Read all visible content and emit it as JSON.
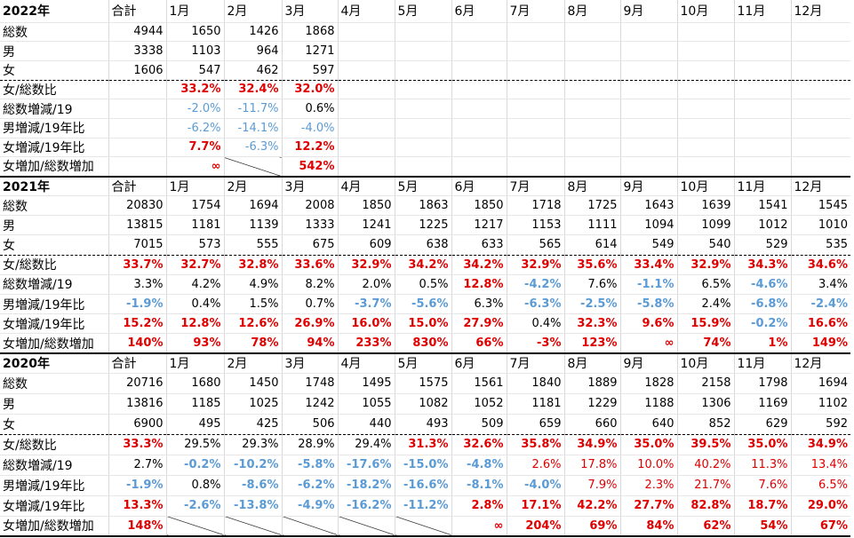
{
  "sections": [
    {
      "header": [
        "2022年",
        "合計",
        "1月",
        "2月",
        "3月",
        "4月",
        "5月",
        "6月",
        "7月",
        "8月",
        "9月",
        "10月",
        "11月",
        "12月"
      ],
      "rows": [
        {
          "cells": [
            "総数",
            4944,
            1650,
            1426,
            1868,
            null,
            null,
            null,
            null,
            null,
            null,
            null,
            null,
            null
          ],
          "styles": "kkkkkkkkkkkkk"
        },
        {
          "cells": [
            "男",
            3338,
            1103,
            964,
            1271,
            null,
            null,
            null,
            null,
            null,
            null,
            null,
            null,
            null
          ],
          "styles": "kkkkkkkkkkkkk"
        },
        {
          "cells": [
            "女",
            1606,
            547,
            462,
            597,
            null,
            null,
            null,
            null,
            null,
            null,
            null,
            null,
            null
          ],
          "styles": "kkkkkkkkkkkkk"
        },
        {
          "cells": [
            "女/総数比",
            null,
            "33.2%",
            "32.4%",
            "32.0%",
            null,
            null,
            null,
            null,
            null,
            null,
            null,
            null,
            null
          ],
          "styles": "krrrkkkkkkkkk"
        },
        {
          "cells": [
            "総数増減/19",
            null,
            "-2.0%",
            "-11.7%",
            "0.6%",
            null,
            null,
            null,
            null,
            null,
            null,
            null,
            null,
            null
          ],
          "styles": "kllkkkkkkkkkk"
        },
        {
          "cells": [
            "男増減/19年比",
            null,
            "-6.2%",
            "-14.1%",
            "-4.0%",
            null,
            null,
            null,
            null,
            null,
            null,
            null,
            null,
            null
          ],
          "styles": "klllkkkkkkkkk"
        },
        {
          "cells": [
            "女増減/19年比",
            null,
            "7.7%",
            "-6.3%",
            "12.2%",
            null,
            null,
            null,
            null,
            null,
            null,
            null,
            null,
            null
          ],
          "styles": "krlrkkkkkkkkk"
        },
        {
          "cells": [
            "女増加/総数増加",
            null,
            "∞",
            null,
            "542%",
            null,
            null,
            null,
            null,
            null,
            null,
            null,
            null,
            null
          ],
          "styles": "krxrkkkkkkkkk"
        }
      ]
    },
    {
      "header": [
        "2021年",
        "合計",
        "1月",
        "2月",
        "3月",
        "4月",
        "5月",
        "6月",
        "7月",
        "8月",
        "9月",
        "10月",
        "11月",
        "12月"
      ],
      "rows": [
        {
          "cells": [
            "総数",
            20830,
            1754,
            1694,
            2008,
            1850,
            1863,
            1850,
            1718,
            1725,
            1643,
            1639,
            1541,
            1545
          ],
          "styles": "kkkkkkkkkkkkk"
        },
        {
          "cells": [
            "男",
            13815,
            1181,
            1139,
            1333,
            1241,
            1225,
            1217,
            1153,
            1111,
            1094,
            1099,
            1012,
            1010
          ],
          "styles": "kkkkkkkkkkkkk"
        },
        {
          "cells": [
            "女",
            7015,
            573,
            555,
            675,
            609,
            638,
            633,
            565,
            614,
            549,
            540,
            529,
            535
          ],
          "styles": "kkkkkkkkkkkkk"
        },
        {
          "cells": [
            "女/総数比",
            "33.7%",
            "32.7%",
            "32.8%",
            "33.6%",
            "32.9%",
            "34.2%",
            "34.2%",
            "32.9%",
            "35.6%",
            "33.4%",
            "32.9%",
            "34.3%",
            "34.6%"
          ],
          "styles": "rrrrrrrrrrrrr"
        },
        {
          "cells": [
            "総数増減/19",
            "3.3%",
            "4.2%",
            "4.9%",
            "8.2%",
            "2.0%",
            "0.5%",
            "12.8%",
            "-4.2%",
            "7.6%",
            "-1.1%",
            "6.5%",
            "-4.6%",
            "3.4%"
          ],
          "styles": "kkkkkkrbkbkbk"
        },
        {
          "cells": [
            "男増減/19年比",
            "-1.9%",
            "0.4%",
            "1.5%",
            "0.7%",
            "-3.7%",
            "-5.6%",
            "6.3%",
            "-6.3%",
            "-2.5%",
            "-5.8%",
            "2.4%",
            "-6.8%",
            "-2.4%"
          ],
          "styles": "bkkkbbkbbbkbb"
        },
        {
          "cells": [
            "女増減/19年比",
            "15.2%",
            "12.8%",
            "12.6%",
            "26.9%",
            "16.0%",
            "15.0%",
            "27.9%",
            "0.4%",
            "32.3%",
            "9.6%",
            "15.9%",
            "-0.2%",
            "16.6%"
          ],
          "styles": "rrrrrrrkrrrbr"
        },
        {
          "cells": [
            "女増加/総数増加",
            "140%",
            "93%",
            "78%",
            "94%",
            "233%",
            "830%",
            "66%",
            "-3%",
            "123%",
            "∞",
            "74%",
            "1%",
            "149%"
          ],
          "styles": "rrrrrrrrrrrrr"
        }
      ]
    },
    {
      "header": [
        "2020年",
        "合計",
        "1月",
        "2月",
        "3月",
        "4月",
        "5月",
        "6月",
        "7月",
        "8月",
        "9月",
        "10月",
        "11月",
        "12月"
      ],
      "rows": [
        {
          "cells": [
            "総数",
            20716,
            1680,
            1450,
            1748,
            1495,
            1575,
            1561,
            1840,
            1889,
            1828,
            2158,
            1798,
            1694
          ],
          "styles": "kkkkkkkkkkkkk"
        },
        {
          "cells": [
            "男",
            13816,
            1185,
            1025,
            1242,
            1055,
            1082,
            1052,
            1181,
            1229,
            1188,
            1306,
            1169,
            1102
          ],
          "styles": "kkkkkkkkkkkkk"
        },
        {
          "cells": [
            "女",
            6900,
            495,
            425,
            506,
            440,
            493,
            509,
            659,
            660,
            640,
            852,
            629,
            592
          ],
          "styles": "kkkkkkkkkkkkk"
        },
        {
          "cells": [
            "女/総数比",
            "33.3%",
            "29.5%",
            "29.3%",
            "28.9%",
            "29.4%",
            "31.3%",
            "32.6%",
            "35.8%",
            "34.9%",
            "35.0%",
            "39.5%",
            "35.0%",
            "34.9%"
          ],
          "styles": "rkkkkrrrrrrrr"
        },
        {
          "cells": [
            "総数増減/19",
            "2.7%",
            "-0.2%",
            "-10.2%",
            "-5.8%",
            "-17.6%",
            "-15.0%",
            "-4.8%",
            "2.6%",
            "17.8%",
            "10.0%",
            "40.2%",
            "11.3%",
            "13.4%"
          ],
          "styles": "kbbbbbbssssss"
        },
        {
          "cells": [
            "男増減/19年比",
            "-1.9%",
            "0.8%",
            "-8.6%",
            "-6.2%",
            "-18.2%",
            "-16.6%",
            "-8.1%",
            "-4.0%",
            "7.9%",
            "2.3%",
            "21.7%",
            "7.6%",
            "6.5%"
          ],
          "styles": "bkbbbbbbsssss"
        },
        {
          "cells": [
            "女増減/19年比",
            "13.3%",
            "-2.6%",
            "-13.8%",
            "-4.9%",
            "-16.2%",
            "-11.2%",
            "2.8%",
            "17.1%",
            "42.2%",
            "27.7%",
            "82.8%",
            "18.7%",
            "29.0%"
          ],
          "styles": "rbbbbbrrrrrrr"
        },
        {
          "cells": [
            "女増加/総数増加",
            "148%",
            null,
            null,
            null,
            null,
            null,
            "∞",
            "204%",
            "69%",
            "84%",
            "62%",
            "54%",
            "67%"
          ],
          "styles": "rxxxxxrrrrrrr"
        }
      ]
    }
  ]
}
